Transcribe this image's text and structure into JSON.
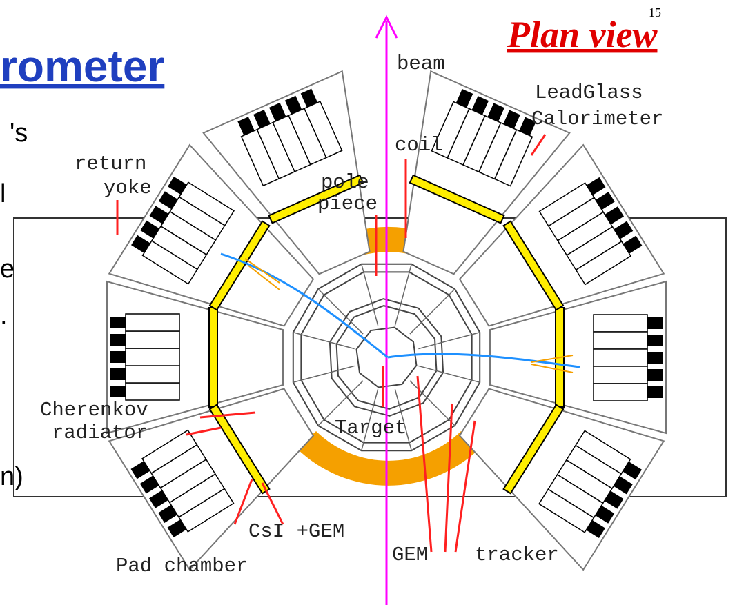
{
  "title": "rometer",
  "page_number": "15",
  "heading": "Plan view",
  "body_fragments": [
    "'s",
    "l",
    "e",
    ".",
    "n)"
  ],
  "labels": {
    "beam": "beam",
    "calorimeter": [
      "LeadGlass",
      "Calorimeter"
    ],
    "coil": "coil",
    "return_yoke": [
      "return",
      "yoke"
    ],
    "pole_piece": [
      "pole",
      "piece"
    ],
    "cherenkov": [
      "Cherenkov",
      "radiator"
    ],
    "target": "Target",
    "csi_gem": "CsI +GEM",
    "pad_chamber": "Pad chamber",
    "gem": "GEM",
    "tracker": "tracker"
  }
}
